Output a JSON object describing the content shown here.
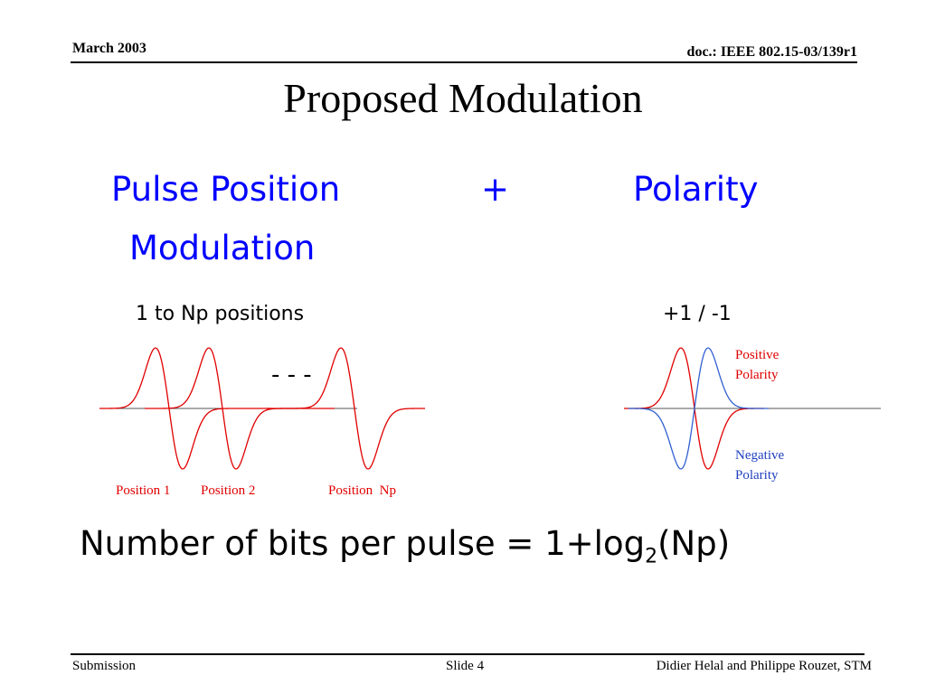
{
  "header": {
    "date": "March 2003",
    "doc": "doc.: IEEE 802.15-03/139r1"
  },
  "title": "Proposed Modulation",
  "left_heading": {
    "line1": "Pulse Position",
    "line2": "Modulation"
  },
  "plus_sign": "+",
  "right_heading": "Polarity",
  "left_subtitle": "1 to Np positions",
  "right_subtitle": "+1 / -1",
  "diagram": {
    "dots": "- - -",
    "position_labels": [
      "Position 1",
      "Position 2",
      "Position  Np"
    ],
    "positive_label": [
      "Positive",
      "Polarity"
    ],
    "negative_label": [
      "Negative",
      "Polarity"
    ],
    "colors": {
      "positive": "#e00000",
      "negative": "#3060d0",
      "axis": "#555555"
    }
  },
  "formula": {
    "prefix": "Number of bits per pulse = 1+log",
    "subscript": "2",
    "suffix": "(Np)"
  },
  "footer": {
    "left": "Submission",
    "middle": "Slide 4",
    "right": "Didier Helal and Philippe Rouzet, STM"
  }
}
